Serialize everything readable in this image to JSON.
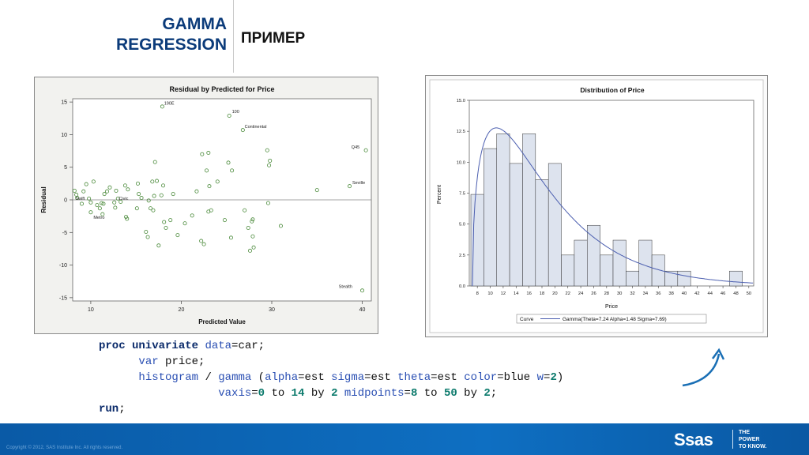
{
  "slide": {
    "title_line1": "GAMMA",
    "title_line2": "REGRESSION",
    "subtitle": "ПРИМЕР"
  },
  "chart_data": [
    {
      "type": "scatter",
      "title": "Residual by Predicted for Price",
      "xlabel": "Predicted Value",
      "ylabel": "Residual",
      "xlim": [
        8,
        41
      ],
      "ylim": [
        -15.5,
        15.5
      ],
      "xticks": [
        10,
        20,
        30,
        40
      ],
      "yticks": [
        15,
        10,
        5,
        0,
        -5,
        -10,
        -15
      ],
      "reference_line": 0,
      "point_color": "#4a8a3a",
      "points": [
        {
          "x": 8.2,
          "y": 1.4
        },
        {
          "x": 8.4,
          "y": 0.8
        },
        {
          "x": 8.5,
          "y": 0.3
        },
        {
          "x": 9.0,
          "y": -0.6
        },
        {
          "x": 9.2,
          "y": 1.3
        },
        {
          "x": 9.5,
          "y": 2.4
        },
        {
          "x": 9.8,
          "y": 0.2
        },
        {
          "x": 10.3,
          "y": 2.8
        },
        {
          "x": 10.0,
          "y": -0.4
        },
        {
          "x": 10.7,
          "y": -0.8
        },
        {
          "x": 10.0,
          "y": -1.9
        },
        {
          "x": 11.2,
          "y": -0.5
        },
        {
          "x": 11.4,
          "y": -0.6
        },
        {
          "x": 11.0,
          "y": -1.3
        },
        {
          "x": 11.5,
          "y": 0.9
        },
        {
          "x": 11.8,
          "y": 1.3
        },
        {
          "x": 12.1,
          "y": 1.9
        },
        {
          "x": 11.3,
          "y": -2.2
        },
        {
          "x": 12.6,
          "y": -0.4
        },
        {
          "x": 12.7,
          "y": -1.2
        },
        {
          "x": 13.0,
          "y": 0.2
        },
        {
          "x": 12.8,
          "y": 1.4
        },
        {
          "x": 13.3,
          "y": -0.3
        },
        {
          "x": 13.8,
          "y": 2.2
        },
        {
          "x": 13.9,
          "y": -2.6
        },
        {
          "x": 14.0,
          "y": -2.9
        },
        {
          "x": 14.1,
          "y": 1.6
        },
        {
          "x": 15.1,
          "y": -1.3
        },
        {
          "x": 15.3,
          "y": 0.9
        },
        {
          "x": 15.2,
          "y": 2.5
        },
        {
          "x": 15.6,
          "y": 0.3
        },
        {
          "x": 16.1,
          "y": -4.9
        },
        {
          "x": 16.3,
          "y": -5.7
        },
        {
          "x": 16.4,
          "y": -0.1
        },
        {
          "x": 16.6,
          "y": -1.3
        },
        {
          "x": 16.9,
          "y": -1.6
        },
        {
          "x": 17.0,
          "y": 0.6
        },
        {
          "x": 16.8,
          "y": 2.8
        },
        {
          "x": 17.1,
          "y": 5.8
        },
        {
          "x": 17.3,
          "y": 2.9
        },
        {
          "x": 17.5,
          "y": -7.0
        },
        {
          "x": 17.8,
          "y": 0.7
        },
        {
          "x": 18.0,
          "y": 2.2
        },
        {
          "x": 18.1,
          "y": -3.4
        },
        {
          "x": 18.3,
          "y": -4.3
        },
        {
          "x": 18.8,
          "y": -3.1
        },
        {
          "x": 19.1,
          "y": 0.9
        },
        {
          "x": 19.6,
          "y": -5.4
        },
        {
          "x": 20.4,
          "y": -3.6
        },
        {
          "x": 21.2,
          "y": -2.4
        },
        {
          "x": 21.7,
          "y": 1.3
        },
        {
          "x": 22.2,
          "y": -6.3
        },
        {
          "x": 22.3,
          "y": 7.0
        },
        {
          "x": 22.5,
          "y": -6.8
        },
        {
          "x": 22.8,
          "y": 4.5
        },
        {
          "x": 23.0,
          "y": 7.2
        },
        {
          "x": 23.1,
          "y": 2.1
        },
        {
          "x": 23.3,
          "y": -1.6
        },
        {
          "x": 23.0,
          "y": -1.8
        },
        {
          "x": 24.0,
          "y": 2.8
        },
        {
          "x": 24.8,
          "y": -3.1
        },
        {
          "x": 25.2,
          "y": 5.7
        },
        {
          "x": 25.5,
          "y": -5.8
        },
        {
          "x": 25.6,
          "y": 4.5
        },
        {
          "x": 27.0,
          "y": -1.6
        },
        {
          "x": 27.4,
          "y": -4.3
        },
        {
          "x": 27.6,
          "y": -7.8
        },
        {
          "x": 27.8,
          "y": -3.3
        },
        {
          "x": 27.9,
          "y": -3.0
        },
        {
          "x": 27.9,
          "y": -5.6
        },
        {
          "x": 28.0,
          "y": -7.3
        },
        {
          "x": 29.5,
          "y": 7.6
        },
        {
          "x": 29.7,
          "y": 5.3
        },
        {
          "x": 29.8,
          "y": 6.0
        },
        {
          "x": 29.6,
          "y": -0.5
        },
        {
          "x": 31.0,
          "y": -4.0
        },
        {
          "x": 35.0,
          "y": 1.5
        },
        {
          "x": 38.6,
          "y": 2.1
        },
        {
          "x": 40.4,
          "y": 7.6
        },
        {
          "x": 40.0,
          "y": -13.9
        },
        {
          "x": 17.9,
          "y": 14.3
        },
        {
          "x": 25.3,
          "y": 12.9
        },
        {
          "x": 26.8,
          "y": 10.7
        }
      ],
      "labels": [
        {
          "text": "190E",
          "x": 18.1,
          "y": 14.6
        },
        {
          "text": "100",
          "x": 25.6,
          "y": 13.3
        },
        {
          "text": "Continental",
          "x": 27.0,
          "y": 11.0
        },
        {
          "text": "Q45",
          "x": 38.8,
          "y": 7.9
        },
        {
          "text": "Seville",
          "x": 38.9,
          "y": 2.4
        },
        {
          "text": "Swift",
          "x": 8.3,
          "y": 0.0
        },
        {
          "text": "Civic",
          "x": 13.1,
          "y": 0.0
        },
        {
          "text": "Metro",
          "x": 10.3,
          "y": -2.9
        },
        {
          "text": "Stealth",
          "x": 37.4,
          "y": -13.5
        }
      ]
    },
    {
      "type": "bar",
      "title": "Distribution of Price",
      "xlabel": "Price",
      "ylabel": "Percent",
      "categories": [
        "8",
        "10",
        "12",
        "14",
        "16",
        "18",
        "20",
        "22",
        "24",
        "26",
        "28",
        "30",
        "32",
        "34",
        "36",
        "38",
        "40",
        "42",
        "44",
        "46",
        "48",
        "50"
      ],
      "values": [
        7.4,
        11.1,
        12.3,
        9.9,
        12.3,
        8.6,
        9.9,
        2.5,
        3.7,
        4.9,
        2.5,
        3.7,
        1.2,
        3.7,
        2.5,
        1.2,
        1.2,
        0,
        0,
        0,
        1.2,
        0
      ],
      "ylim": [
        0,
        15
      ],
      "yticks": [
        "0.0",
        "2.5",
        "5.0",
        "7.5",
        "10.0",
        "12.5",
        "15.0"
      ],
      "bar_fill": "#dde3ee",
      "bar_stroke": "#333333",
      "curve": {
        "name": "Gamma(Theta=7.24 Alpha=1.48 Sigma=7.69)",
        "color": "#4c5fb0",
        "theta": 7.24,
        "alpha": 1.48,
        "sigma": 7.69,
        "bin_width": 2
      },
      "legend_label": "Curve"
    }
  ],
  "code": {
    "line1": {
      "kw": "proc univariate",
      "opt": "data",
      "rest": "=car;"
    },
    "line2": {
      "opt": "var",
      "rest": " price;"
    },
    "line3": {
      "opt1": "histogram",
      "t1": " / ",
      "opt2": "gamma",
      "t2": " (",
      "opt3": "alpha",
      "t3": "=est ",
      "opt4": "sigma",
      "t4": "=est ",
      "opt5": "theta",
      "t5": "=est ",
      "opt6": "color",
      "t6": "=blue ",
      "opt7": "w",
      "t7": "=",
      "num1": "2",
      "t8": ")"
    },
    "line4": {
      "opt1": "vaxis",
      "t1": "=",
      "num1": "0",
      "t2": " to ",
      "num2": "14",
      "t3": " by ",
      "num3": "2",
      "t4": " ",
      "opt2": "midpoints",
      "t5": "=",
      "num4": "8",
      "t6": " to ",
      "num5": "50",
      "t7": " by ",
      "num6": "2",
      "t8": ";"
    },
    "line5": {
      "kw": "run",
      "rest": ";"
    }
  },
  "footer": {
    "copyright": "Copyright © 2012, SAS Institute Inc. All rights reserved.",
    "logo": "Ssas",
    "tagline_line1": "THE",
    "tagline_line2": "POWER",
    "tagline_line3": "TO KNOW."
  },
  "colors": {
    "title": "#0b3b7a",
    "footer": "#0e6fc2",
    "arrow": "#1a6fb5"
  }
}
